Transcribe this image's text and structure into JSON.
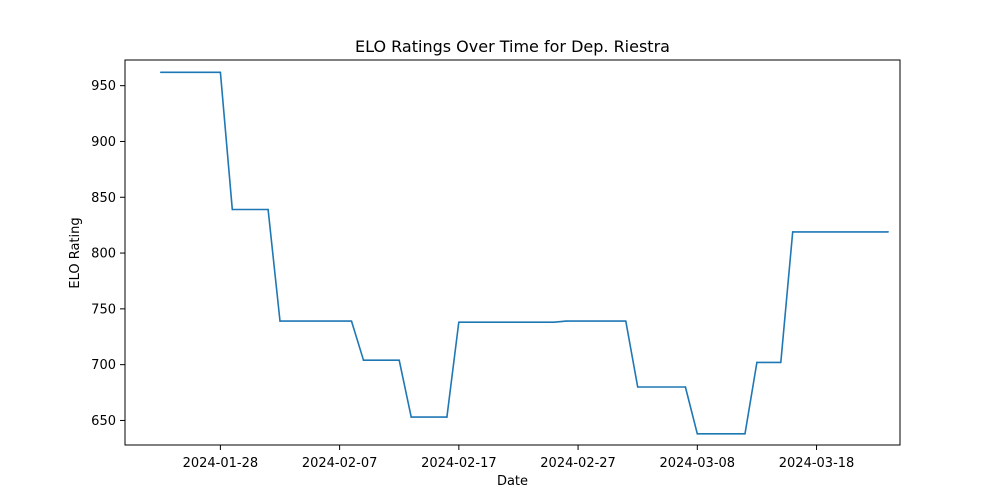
{
  "chart_data": {
    "type": "line",
    "title": "ELO Ratings Over Time for Dep. Riestra",
    "xlabel": "Date",
    "ylabel": "ELO Rating",
    "x_ticks": [
      "2024-01-28",
      "2024-02-07",
      "2024-02-17",
      "2024-02-27",
      "2024-03-08",
      "2024-03-18"
    ],
    "y_ticks": [
      650,
      700,
      750,
      800,
      850,
      900,
      950
    ],
    "xlim": [
      "2024-01-20",
      "2024-03-25"
    ],
    "ylim": [
      628,
      973
    ],
    "grid": false,
    "series": [
      {
        "color": "#1f77b4",
        "x": [
          "2024-01-23",
          "2024-01-28",
          "2024-01-29",
          "2024-02-01",
          "2024-02-02",
          "2024-02-08",
          "2024-02-09",
          "2024-02-12",
          "2024-02-13",
          "2024-02-16",
          "2024-02-17",
          "2024-02-25",
          "2024-02-26",
          "2024-03-02",
          "2024-03-03",
          "2024-03-07",
          "2024-03-08",
          "2024-03-12",
          "2024-03-13",
          "2024-03-15",
          "2024-03-16",
          "2024-03-24"
        ],
        "y": [
          962,
          962,
          839,
          839,
          739,
          739,
          704,
          704,
          653,
          653,
          738,
          738,
          739,
          739,
          680,
          680,
          638,
          638,
          702,
          702,
          819,
          819
        ]
      }
    ]
  }
}
